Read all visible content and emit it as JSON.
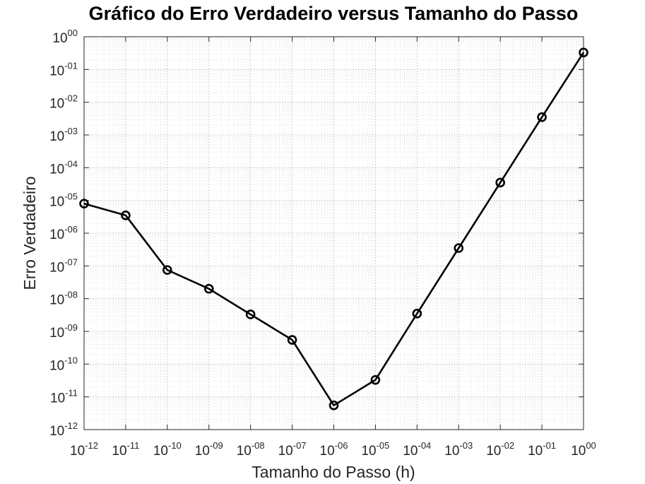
{
  "chart_data": {
    "type": "line",
    "title": "Gráfico do Erro Verdadeiro versus Tamanho do Passo",
    "xlabel": "Tamanho do Passo (h)",
    "ylabel": "Erro Verdadeiro",
    "xscale": "log",
    "yscale": "log",
    "xlim": [
      1e-12,
      1
    ],
    "ylim": [
      1e-12,
      1
    ],
    "grid": "on (major and minor)",
    "legend": "none",
    "xticks": [
      {
        "base": "10",
        "exp": "-12"
      },
      {
        "base": "10",
        "exp": "-11"
      },
      {
        "base": "10",
        "exp": "-10"
      },
      {
        "base": "10",
        "exp": "-09"
      },
      {
        "base": "10",
        "exp": "-08"
      },
      {
        "base": "10",
        "exp": "-07"
      },
      {
        "base": "10",
        "exp": "-06"
      },
      {
        "base": "10",
        "exp": "-05"
      },
      {
        "base": "10",
        "exp": "-04"
      },
      {
        "base": "10",
        "exp": "-03"
      },
      {
        "base": "10",
        "exp": "-02"
      },
      {
        "base": "10",
        "exp": "-01"
      },
      {
        "base": "10",
        "exp": "00"
      }
    ],
    "yticks": [
      {
        "base": "10",
        "exp": "-12"
      },
      {
        "base": "10",
        "exp": "-11"
      },
      {
        "base": "10",
        "exp": "-10"
      },
      {
        "base": "10",
        "exp": "-09"
      },
      {
        "base": "10",
        "exp": "-08"
      },
      {
        "base": "10",
        "exp": "-07"
      },
      {
        "base": "10",
        "exp": "-06"
      },
      {
        "base": "10",
        "exp": "-05"
      },
      {
        "base": "10",
        "exp": "-04"
      },
      {
        "base": "10",
        "exp": "-03"
      },
      {
        "base": "10",
        "exp": "-02"
      },
      {
        "base": "10",
        "exp": "-01"
      },
      {
        "base": "10",
        "exp": "00"
      }
    ],
    "series": [
      {
        "color": "#000000",
        "marker": "circle",
        "x": [
          1e-12,
          1e-11,
          1e-10,
          1e-09,
          1e-08,
          1e-07,
          1e-06,
          1e-05,
          0.0001,
          0.001,
          0.01,
          0.1,
          1
        ],
        "y": [
          8e-06,
          3.5e-06,
          7.5e-08,
          2e-08,
          3.3e-09,
          5.5e-10,
          5.5e-12,
          3.3e-11,
          3.5e-09,
          3.5e-07,
          3.5e-05,
          0.0035,
          0.33
        ]
      }
    ]
  }
}
